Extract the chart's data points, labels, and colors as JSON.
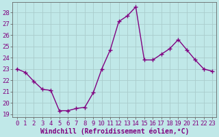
{
  "x": [
    0,
    1,
    2,
    3,
    4,
    5,
    6,
    7,
    8,
    9,
    10,
    11,
    12,
    13,
    14,
    15,
    16,
    17,
    18,
    19,
    20,
    21,
    22,
    23
  ],
  "y": [
    23.0,
    22.7,
    21.9,
    21.2,
    21.1,
    19.3,
    19.3,
    19.5,
    19.6,
    20.9,
    23.0,
    24.7,
    27.2,
    27.7,
    28.5,
    23.8,
    23.8,
    24.3,
    24.8,
    25.6,
    24.7,
    23.8,
    23.0,
    22.8
  ],
  "line_color": "#800080",
  "marker": "+",
  "bg_color": "#c0e8e8",
  "grid_color": "#aacccc",
  "xlabel": "Windchill (Refroidissement éolien,°C)",
  "ylabel_ticks": [
    19,
    20,
    21,
    22,
    23,
    24,
    25,
    26,
    27,
    28
  ],
  "xlim": [
    -0.5,
    23.5
  ],
  "ylim": [
    18.7,
    28.9
  ],
  "xtick_labels": [
    "0",
    "1",
    "2",
    "3",
    "4",
    "5",
    "6",
    "7",
    "8",
    "9",
    "10",
    "11",
    "12",
    "13",
    "14",
    "15",
    "16",
    "17",
    "18",
    "19",
    "20",
    "21",
    "22",
    "23"
  ],
  "xlabel_fontsize": 7,
  "tick_fontsize": 6.5,
  "line_width": 1.0,
  "marker_size": 4,
  "marker_edge_width": 1.0
}
